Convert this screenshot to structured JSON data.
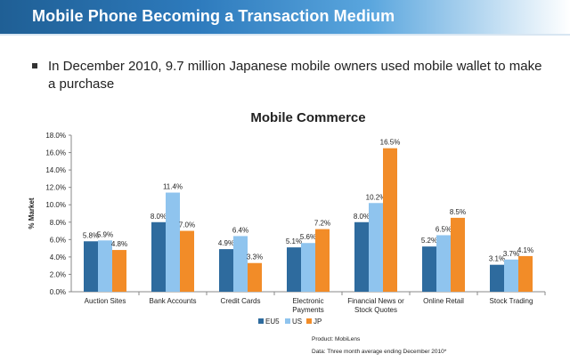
{
  "header": {
    "title": "Mobile Phone Becoming a Transaction Medium"
  },
  "bullet": {
    "text": "In December 2010, 9.7 million Japanese mobile owners used mobile wallet to make a purchase"
  },
  "colors": {
    "EU5": "#2e6b9e",
    "US": "#8fc4ee",
    "JP": "#f28c28"
  },
  "chart_data": {
    "type": "bar",
    "title": "Mobile Commerce",
    "ylabel": "% Market",
    "ylim": [
      0,
      18
    ],
    "yticks": [
      "0.0%",
      "2.0%",
      "4.0%",
      "6.0%",
      "8.0%",
      "10.0%",
      "12.0%",
      "14.0%",
      "16.0%",
      "18.0%"
    ],
    "categories": [
      [
        "Auction Sites"
      ],
      [
        "Bank Accounts"
      ],
      [
        "Credit Cards"
      ],
      [
        "Electronic",
        "Payments"
      ],
      [
        "Financial News or",
        "Stock Quotes"
      ],
      [
        "Online Retail"
      ],
      [
        "Stock Trading"
      ]
    ],
    "series": [
      {
        "name": "EU5",
        "values": [
          5.8,
          8.0,
          4.9,
          5.1,
          8.0,
          5.2,
          3.1
        ],
        "labels": [
          "5.8%",
          "8.0%",
          "4.9%",
          "5.1%",
          "8.0%",
          "5.2%",
          "3.1%"
        ]
      },
      {
        "name": "US",
        "values": [
          5.9,
          11.4,
          6.4,
          5.6,
          10.2,
          6.5,
          3.7
        ],
        "labels": [
          "5.9%",
          "11.4%",
          "6.4%",
          "5.6%",
          "10.2%",
          "6.5%",
          "3.7%"
        ]
      },
      {
        "name": "JP",
        "values": [
          4.8,
          7.0,
          3.3,
          7.2,
          16.5,
          8.5,
          4.1
        ],
        "labels": [
          "4.8%",
          "7.0%",
          "3.3%",
          "7.2%",
          "16.5%",
          "8.5%",
          "4.1%"
        ]
      }
    ],
    "legend_position": "bottom",
    "source": [
      "Product: MobiLens",
      "Data: Three month average ending December 2010*"
    ]
  }
}
